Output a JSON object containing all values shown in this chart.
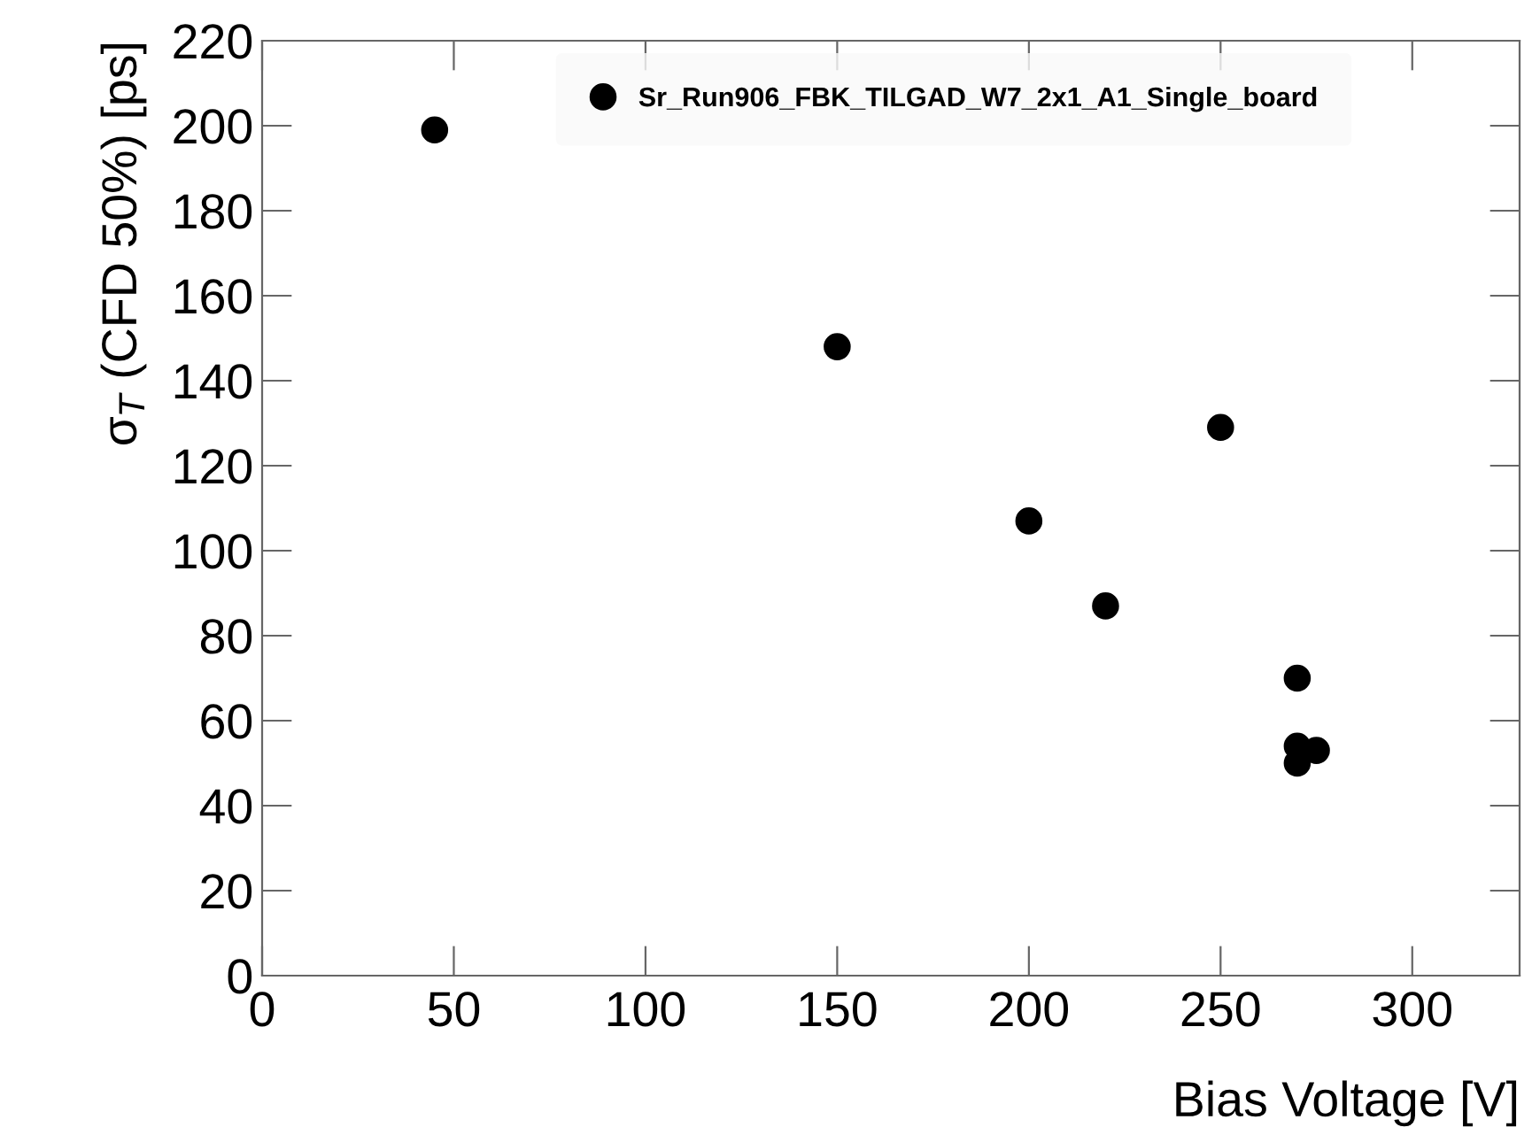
{
  "chart_data": {
    "type": "scatter",
    "xlabel": "Bias Voltage [V]",
    "ylabel": "σ$_{T}$ (CFD 50%) [ps]",
    "x": [
      45,
      150,
      200,
      220,
      250,
      270,
      270,
      270,
      275
    ],
    "series": [
      {
        "name": "Sr_Run906_FBK_TILGAD_W7_2x1_A1_Single_board",
        "color": "#000000",
        "values": [
          199,
          148,
          107,
          87,
          129,
          70,
          54,
          50,
          53
        ]
      }
    ],
    "xlim": [
      0,
      328
    ],
    "xticks": [
      0,
      50,
      100,
      150,
      200,
      250,
      300
    ],
    "ylim": [
      0,
      220
    ],
    "yticks": [
      0,
      20,
      40,
      60,
      80,
      100,
      120,
      140,
      160,
      180,
      200,
      220
    ],
    "marker": "circle",
    "legend": "top",
    "grid": false
  }
}
